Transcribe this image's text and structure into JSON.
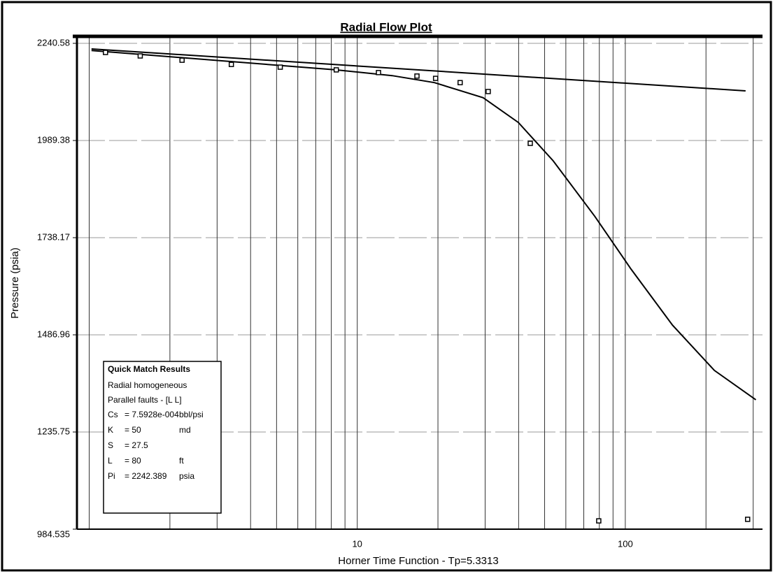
{
  "chart_data": {
    "type": "line",
    "title": "Radial Flow Plot",
    "x_label": "Horner Time Function - Tp=5.3313",
    "y_label": "Pressure (psia)",
    "log_x": true,
    "grid": true,
    "xlim": [
      0.9,
      325
    ],
    "xticks": [
      10,
      100
    ],
    "xminorticks": [
      1,
      2,
      3,
      4,
      5,
      6,
      7,
      8,
      9,
      20,
      30,
      40,
      50,
      60,
      70,
      80,
      90,
      200,
      300
    ],
    "ylim": [
      984.535,
      2240.58
    ],
    "yticks": [
      984.535,
      1235.75,
      1486.96,
      1738.17,
      1989.38,
      2240.58
    ],
    "series": [
      {
        "kind": "line",
        "color": "#000000",
        "x": [
          1.02,
          281
        ],
        "values": [
          2226.1,
          2117.6
        ]
      },
      {
        "kind": "line",
        "color": "#000000",
        "x": [
          1.02,
          8.3,
          13.5,
          19.4,
          29.5,
          39.9,
          53.8,
          77,
          105,
          150,
          215,
          307
        ],
        "values": [
          2222,
          2172,
          2157,
          2139,
          2100,
          2036,
          1937,
          1793,
          1657,
          1512,
          1395,
          1319
        ]
      },
      {
        "kind": "markers",
        "color": "#000000",
        "x": [
          1.15,
          1.55,
          2.22,
          3.39,
          5.16,
          8.35,
          12.0,
          16.7,
          19.6,
          24.2,
          30.8,
          44.2,
          79.6,
          286
        ],
        "values": [
          2217,
          2208,
          2197,
          2186,
          2179,
          2172,
          2165,
          2156,
          2150,
          2139,
          2116,
          1982,
          1006,
          1010
        ]
      }
    ],
    "annotation": {
      "title": "Quick Match Results",
      "lines": [
        "Radial homogeneous",
        "Parallel faults - [L L]"
      ],
      "rows": [
        [
          "Cs",
          "= 7.5928e-004",
          "bbl/psi"
        ],
        [
          "K",
          "= 50",
          "md"
        ],
        [
          "S",
          "= 27.5",
          ""
        ],
        [
          "L",
          "= 80",
          "ft"
        ],
        [
          "Pi",
          "= 2242.389",
          "psia"
        ]
      ]
    }
  }
}
